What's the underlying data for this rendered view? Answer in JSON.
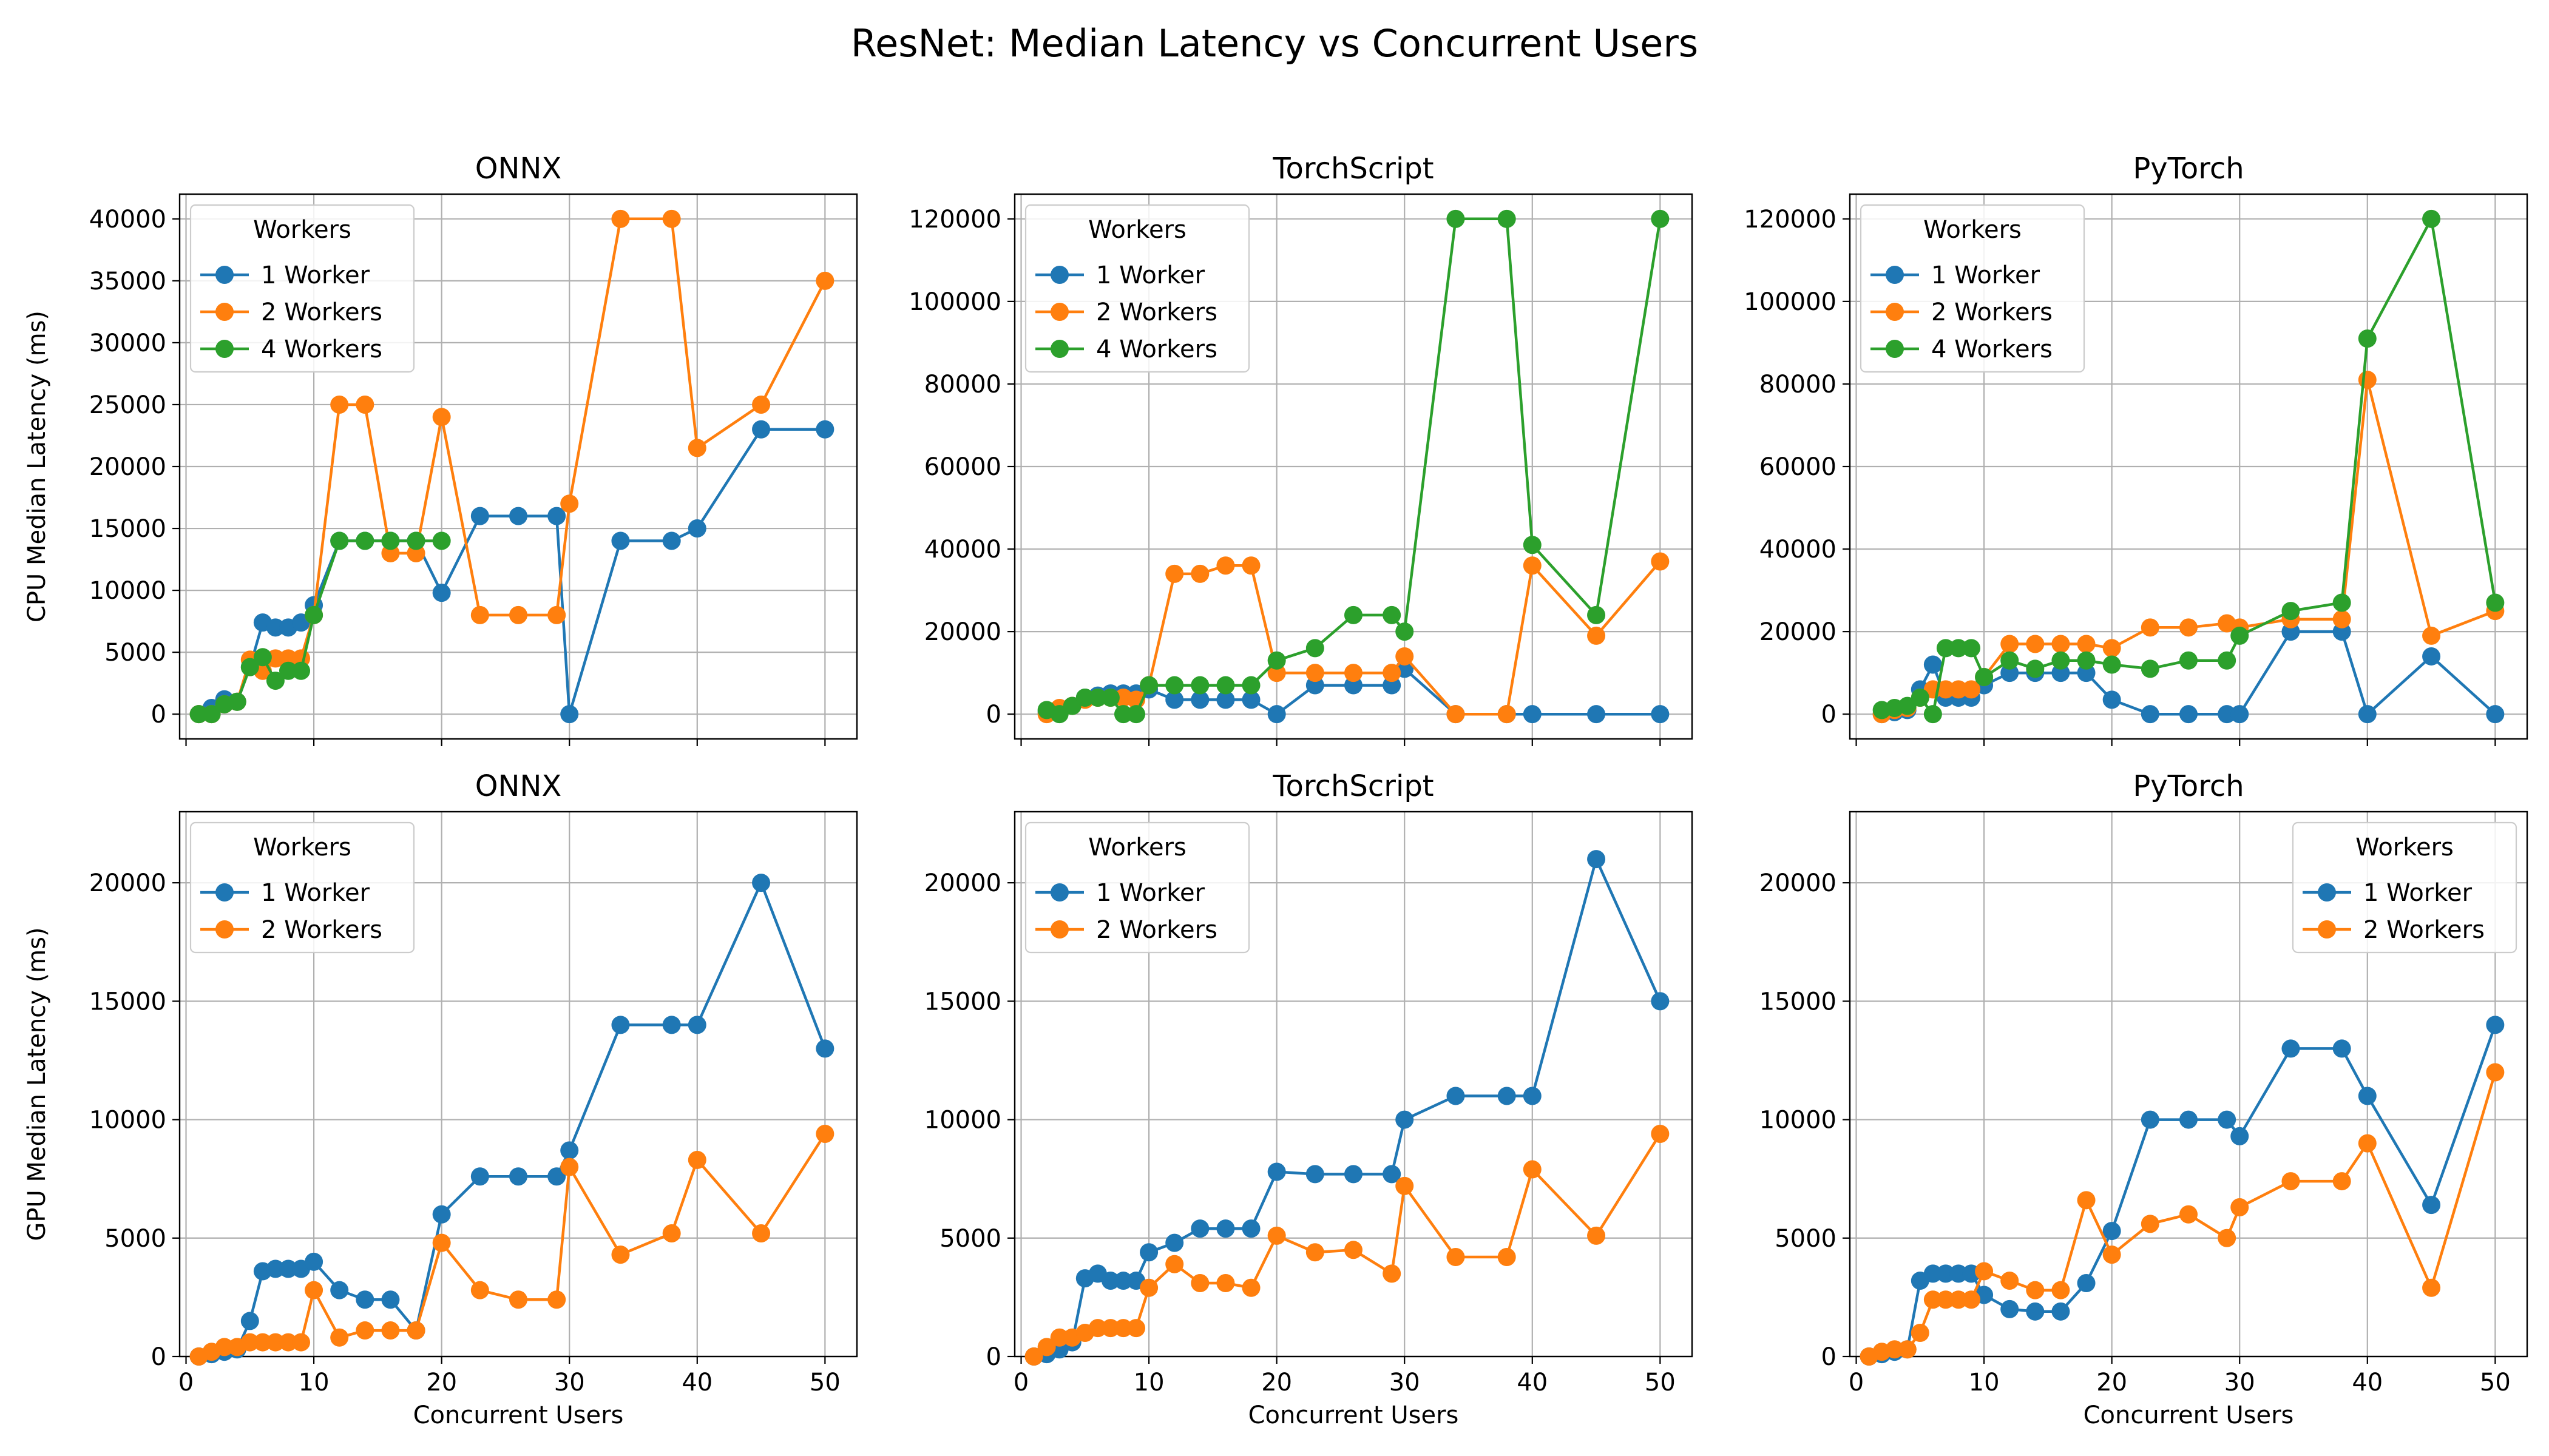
{
  "figure": {
    "title": "ResNet: Median Latency vs Concurrent Users"
  },
  "colors": {
    "1 Worker": "#1f77b4",
    "2 Workers": "#ff7f0e",
    "4 Workers": "#2ca02c",
    "grid": "#b0b0b0"
  },
  "chart_data": [
    {
      "type": "line",
      "title": "ONNX",
      "xlabel": "",
      "ylabel": "CPU Median Latency (ms)",
      "xlim": [
        -0.5,
        52.5
      ],
      "ylim": [
        -2000,
        42000
      ],
      "xticks": [
        0,
        10,
        20,
        30,
        40,
        50
      ],
      "xtick_labels": [
        "",
        "",
        "",
        "",
        "",
        ""
      ],
      "yticks": [
        0,
        5000,
        10000,
        15000,
        20000,
        25000,
        30000,
        35000,
        40000
      ],
      "grid": true,
      "legend": {
        "title": "Workers",
        "position": "upper-left"
      },
      "series": [
        {
          "name": "1 Worker",
          "x": [
            1,
            2,
            3,
            4,
            5,
            6,
            7,
            8,
            9,
            10,
            12,
            14,
            16,
            18,
            20,
            23,
            26,
            29,
            30,
            34,
            38,
            40,
            45,
            50
          ],
          "y": [
            0,
            500,
            1200,
            1000,
            3800,
            7400,
            7000,
            7000,
            7400,
            8800,
            14000,
            14000,
            14000,
            14000,
            9800,
            16000,
            16000,
            16000,
            0,
            14000,
            14000,
            15000,
            23000,
            23000
          ]
        },
        {
          "name": "2 Workers",
          "x": [
            1,
            2,
            3,
            4,
            5,
            6,
            7,
            8,
            9,
            10,
            12,
            14,
            16,
            18,
            20,
            23,
            26,
            29,
            30,
            34,
            38,
            40,
            45,
            50
          ],
          "y": [
            0,
            0,
            800,
            1000,
            4400,
            3500,
            4500,
            4500,
            4500,
            8000,
            25000,
            25000,
            13000,
            13000,
            24000,
            8000,
            8000,
            8000,
            17000,
            40000,
            40000,
            21500,
            25000,
            35000
          ]
        },
        {
          "name": "4 Workers",
          "x": [
            1,
            2,
            3,
            4,
            5,
            6,
            7,
            8,
            9,
            10,
            12,
            14,
            16,
            18,
            20
          ],
          "y": [
            0,
            0,
            800,
            1000,
            3800,
            4600,
            2700,
            3500,
            3500,
            8000,
            14000,
            14000,
            14000,
            14000,
            14000
          ]
        }
      ]
    },
    {
      "type": "line",
      "title": "TorchScript",
      "xlabel": "",
      "ylabel": "",
      "xlim": [
        -0.5,
        52.5
      ],
      "ylim": [
        -6000,
        126000
      ],
      "xticks": [
        0,
        10,
        20,
        30,
        40,
        50
      ],
      "xtick_labels": [
        "",
        "",
        "",
        "",
        "",
        ""
      ],
      "yticks": [
        0,
        20000,
        40000,
        60000,
        80000,
        100000,
        120000
      ],
      "grid": true,
      "legend": {
        "title": "Workers",
        "position": "upper-left"
      },
      "series": [
        {
          "name": "1 Worker",
          "x": [
            2,
            3,
            4,
            5,
            6,
            7,
            8,
            9,
            10,
            12,
            14,
            16,
            18,
            20,
            23,
            26,
            29,
            30,
            34,
            38,
            40,
            45,
            50
          ],
          "y": [
            500,
            500,
            2000,
            4000,
            4500,
            5000,
            5000,
            5000,
            6000,
            3500,
            3500,
            3500,
            3500,
            0,
            7000,
            7000,
            7000,
            11000,
            0,
            0,
            0,
            0,
            0
          ]
        },
        {
          "name": "2 Workers",
          "x": [
            2,
            3,
            4,
            5,
            6,
            7,
            8,
            9,
            10,
            12,
            14,
            16,
            18,
            20,
            23,
            26,
            29,
            30,
            34,
            38,
            40,
            45,
            50
          ],
          "y": [
            0,
            1500,
            2000,
            3500,
            4000,
            4000,
            4000,
            3500,
            7000,
            34000,
            34000,
            36000,
            36000,
            10000,
            10000,
            10000,
            10000,
            14000,
            0,
            0,
            36000,
            19000,
            37000
          ]
        },
        {
          "name": "4 Workers",
          "x": [
            2,
            3,
            4,
            5,
            6,
            7,
            8,
            9,
            10,
            12,
            14,
            16,
            18,
            20,
            23,
            26,
            29,
            30,
            34,
            38,
            40,
            45,
            50
          ],
          "y": [
            1000,
            0,
            2000,
            4000,
            4000,
            4000,
            0,
            0,
            7000,
            7000,
            7000,
            7000,
            7000,
            13000,
            16000,
            24000,
            24000,
            20000,
            120000,
            120000,
            41000,
            24000,
            120000
          ]
        }
      ]
    },
    {
      "type": "line",
      "title": "PyTorch",
      "xlabel": "",
      "ylabel": "",
      "xlim": [
        -0.5,
        52.5
      ],
      "ylim": [
        -6000,
        126000
      ],
      "xticks": [
        0,
        10,
        20,
        30,
        40,
        50
      ],
      "xtick_labels": [
        "",
        "",
        "",
        "",
        "",
        ""
      ],
      "yticks": [
        0,
        20000,
        40000,
        60000,
        80000,
        100000,
        120000
      ],
      "grid": true,
      "legend": {
        "title": "Workers",
        "position": "upper-left"
      },
      "series": [
        {
          "name": "1 Worker",
          "x": [
            2,
            3,
            4,
            5,
            6,
            7,
            8,
            9,
            10,
            12,
            14,
            16,
            18,
            20,
            23,
            26,
            29,
            30,
            34,
            38,
            40,
            45,
            50
          ],
          "y": [
            0,
            500,
            1000,
            6000,
            12000,
            4000,
            4000,
            4000,
            7000,
            10000,
            10000,
            10000,
            10000,
            3500,
            0,
            0,
            0,
            0,
            20000,
            20000,
            0,
            14000,
            0
          ]
        },
        {
          "name": "2 Workers",
          "x": [
            2,
            3,
            4,
            5,
            6,
            7,
            8,
            9,
            10,
            12,
            14,
            16,
            18,
            20,
            23,
            26,
            29,
            30,
            34,
            38,
            40,
            45,
            50
          ],
          "y": [
            0,
            1000,
            1500,
            4000,
            6000,
            6000,
            6000,
            6000,
            9000,
            17000,
            17000,
            17000,
            17000,
            16000,
            21000,
            21000,
            22000,
            21000,
            23000,
            23000,
            81000,
            19000,
            25000
          ]
        },
        {
          "name": "4 Workers",
          "x": [
            2,
            3,
            4,
            5,
            6,
            7,
            8,
            9,
            10,
            12,
            14,
            16,
            18,
            20,
            23,
            26,
            29,
            30,
            34,
            38,
            40,
            45,
            50
          ],
          "y": [
            1000,
            1500,
            2000,
            4000,
            0,
            16000,
            16000,
            16000,
            9000,
            13000,
            11000,
            13000,
            13000,
            12000,
            11000,
            13000,
            13000,
            19000,
            25000,
            27000,
            91000,
            120000,
            27000
          ]
        }
      ]
    },
    {
      "type": "line",
      "title": "ONNX",
      "xlabel": "Concurrent Users",
      "ylabel": "GPU Median Latency (ms)",
      "xlim": [
        -0.5,
        52.5
      ],
      "ylim": [
        0,
        23000
      ],
      "xticks": [
        0,
        10,
        20,
        30,
        40,
        50
      ],
      "xtick_labels": [
        "0",
        "10",
        "20",
        "30",
        "40",
        "50"
      ],
      "yticks": [
        0,
        5000,
        10000,
        15000,
        20000
      ],
      "grid": true,
      "legend": {
        "title": "Workers",
        "position": "upper-left"
      },
      "series": [
        {
          "name": "1 Worker",
          "x": [
            1,
            2,
            3,
            4,
            5,
            6,
            7,
            8,
            9,
            10,
            12,
            14,
            16,
            18,
            20,
            23,
            26,
            29,
            30,
            34,
            38,
            40,
            45,
            50
          ],
          "y": [
            0,
            100,
            200,
            300,
            1500,
            3600,
            3700,
            3700,
            3700,
            4000,
            2800,
            2400,
            2400,
            1100,
            6000,
            7600,
            7600,
            7600,
            8700,
            14000,
            14000,
            14000,
            20000,
            13000
          ]
        },
        {
          "name": "2 Workers",
          "x": [
            1,
            2,
            3,
            4,
            5,
            6,
            7,
            8,
            9,
            10,
            12,
            14,
            16,
            18,
            20,
            23,
            26,
            29,
            30,
            34,
            38,
            40,
            45,
            50
          ],
          "y": [
            0,
            200,
            400,
            400,
            600,
            600,
            600,
            600,
            600,
            2800,
            800,
            1100,
            1100,
            1100,
            4800,
            2800,
            2400,
            2400,
            8000,
            4300,
            5200,
            8300,
            5200,
            9400
          ]
        }
      ]
    },
    {
      "type": "line",
      "title": "TorchScript",
      "xlabel": "Concurrent Users",
      "ylabel": "",
      "xlim": [
        -0.5,
        52.5
      ],
      "ylim": [
        0,
        23000
      ],
      "xticks": [
        0,
        10,
        20,
        30,
        40,
        50
      ],
      "xtick_labels": [
        "0",
        "10",
        "20",
        "30",
        "40",
        "50"
      ],
      "yticks": [
        0,
        5000,
        10000,
        15000,
        20000
      ],
      "grid": true,
      "legend": {
        "title": "Workers",
        "position": "upper-left"
      },
      "series": [
        {
          "name": "1 Worker",
          "x": [
            1,
            2,
            3,
            4,
            5,
            6,
            7,
            8,
            9,
            10,
            12,
            14,
            16,
            18,
            20,
            23,
            26,
            29,
            30,
            34,
            38,
            40,
            45,
            50
          ],
          "y": [
            0,
            100,
            300,
            600,
            3300,
            3500,
            3200,
            3200,
            3200,
            4400,
            4800,
            5400,
            5400,
            5400,
            7800,
            7700,
            7700,
            7700,
            10000,
            11000,
            11000,
            11000,
            21000,
            15000
          ]
        },
        {
          "name": "2 Workers",
          "x": [
            1,
            2,
            3,
            4,
            5,
            6,
            7,
            8,
            9,
            10,
            12,
            14,
            16,
            18,
            20,
            23,
            26,
            29,
            30,
            34,
            38,
            40,
            45,
            50
          ],
          "y": [
            0,
            400,
            800,
            800,
            1000,
            1200,
            1200,
            1200,
            1200,
            2900,
            3900,
            3100,
            3100,
            2900,
            5100,
            4400,
            4500,
            3500,
            7200,
            4200,
            4200,
            7900,
            5100,
            9400
          ]
        }
      ]
    },
    {
      "type": "line",
      "title": "PyTorch",
      "xlabel": "Concurrent Users",
      "ylabel": "",
      "xlim": [
        -0.5,
        52.5
      ],
      "ylim": [
        0,
        23000
      ],
      "xticks": [
        0,
        10,
        20,
        30,
        40,
        50
      ],
      "xtick_labels": [
        "0",
        "10",
        "20",
        "30",
        "40",
        "50"
      ],
      "yticks": [
        0,
        5000,
        10000,
        15000,
        20000
      ],
      "grid": true,
      "legend": {
        "title": "Workers",
        "position": "upper-right"
      },
      "series": [
        {
          "name": "1 Worker",
          "x": [
            1,
            2,
            3,
            4,
            5,
            6,
            7,
            8,
            9,
            10,
            12,
            14,
            16,
            18,
            20,
            23,
            26,
            29,
            30,
            34,
            38,
            40,
            45,
            50
          ],
          "y": [
            0,
            100,
            200,
            300,
            3200,
            3500,
            3500,
            3500,
            3500,
            2600,
            2000,
            1900,
            1900,
            3100,
            5300,
            10000,
            10000,
            10000,
            9300,
            13000,
            13000,
            11000,
            6400,
            14000
          ]
        },
        {
          "name": "2 Workers",
          "x": [
            1,
            2,
            3,
            4,
            5,
            6,
            7,
            8,
            9,
            10,
            12,
            14,
            16,
            18,
            20,
            23,
            26,
            29,
            30,
            34,
            38,
            40,
            45,
            50
          ],
          "y": [
            0,
            200,
            300,
            300,
            1000,
            2400,
            2400,
            2400,
            2400,
            3600,
            3200,
            2800,
            2800,
            6600,
            4300,
            5600,
            6000,
            5000,
            6300,
            7400,
            7400,
            9000,
            2900,
            12000
          ]
        }
      ]
    }
  ]
}
